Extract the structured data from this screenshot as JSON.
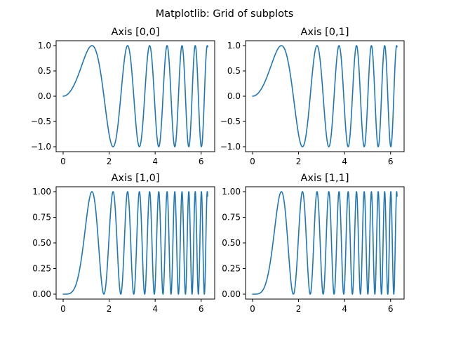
{
  "figure": {
    "suptitle": "Matplotlib: Grid of subplots",
    "line_color": "#1f77b4"
  },
  "chart_data": [
    {
      "type": "line",
      "title": "Axis [0,0]",
      "function": "sin(x^2)",
      "xlim": [
        0,
        6.2832
      ],
      "ylim": [
        -1.0,
        1.0
      ],
      "xticks": [
        0,
        2,
        4,
        6
      ],
      "xtick_labels": [
        "0",
        "2",
        "4",
        "6"
      ],
      "yticks": [
        -1.0,
        -0.5,
        0.0,
        0.5,
        1.0
      ],
      "ytick_labels": [
        "−1.0",
        "−0.5",
        "0.0",
        "0.5",
        "1.0"
      ]
    },
    {
      "type": "line",
      "title": "Axis [0,1]",
      "function": "sin(x^2)",
      "xlim": [
        0,
        6.2832
      ],
      "ylim": [
        -1.0,
        1.0
      ],
      "xticks": [
        0,
        2,
        4,
        6
      ],
      "xtick_labels": [
        "0",
        "2",
        "4",
        "6"
      ],
      "yticks": [
        -1.0,
        -0.5,
        0.0,
        0.5,
        1.0
      ],
      "ytick_labels": [
        "−1.0",
        "−0.5",
        "0.0",
        "0.5",
        "1.0"
      ]
    },
    {
      "type": "line",
      "title": "Axis [1,0]",
      "function": "sin(x^2)^2",
      "xlim": [
        0,
        6.2832
      ],
      "ylim": [
        0.0,
        1.0
      ],
      "xticks": [
        0,
        2,
        4,
        6
      ],
      "xtick_labels": [
        "0",
        "2",
        "4",
        "6"
      ],
      "yticks": [
        0.0,
        0.25,
        0.5,
        0.75,
        1.0
      ],
      "ytick_labels": [
        "0.00",
        "0.25",
        "0.50",
        "0.75",
        "1.00"
      ]
    },
    {
      "type": "line",
      "title": "Axis [1,1]",
      "function": "sin(x^2)^2",
      "xlim": [
        0,
        6.2832
      ],
      "ylim": [
        0.0,
        1.0
      ],
      "xticks": [
        0,
        2,
        4,
        6
      ],
      "xtick_labels": [
        "0",
        "2",
        "4",
        "6"
      ],
      "yticks": [
        0.0,
        0.25,
        0.5,
        0.75,
        1.0
      ],
      "ytick_labels": [
        "0.00",
        "0.25",
        "0.50",
        "0.75",
        "1.00"
      ]
    }
  ]
}
